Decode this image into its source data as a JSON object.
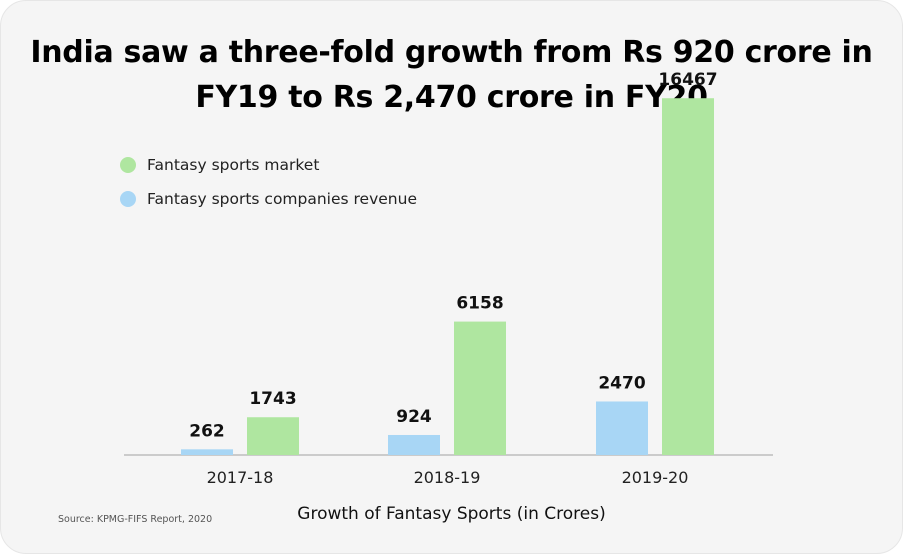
{
  "chart_data": {
    "type": "bar",
    "title": "India saw a three-fold growth from Rs 920 crore in FY19 to Rs 2,470 crore in FY20",
    "xlabel": "Growth of Fantasy Sports (in Crores)",
    "ylabel": "",
    "categories": [
      "2017-18",
      "2018-19",
      "2019-20"
    ],
    "series": [
      {
        "name": "Fantasy sports companies revenue",
        "values": [
          262,
          924,
          2470
        ],
        "color": "#a8d6f5"
      },
      {
        "name": "Fantasy sports market",
        "values": [
          1743,
          6158,
          16467
        ],
        "color": "#afe6a0"
      }
    ],
    "legend_order": [
      1,
      0
    ],
    "ylim": [
      0,
      18000
    ],
    "grid": false,
    "legend_position": "top-left"
  },
  "source": "Source: KPMG-FIFS Report, 2020"
}
